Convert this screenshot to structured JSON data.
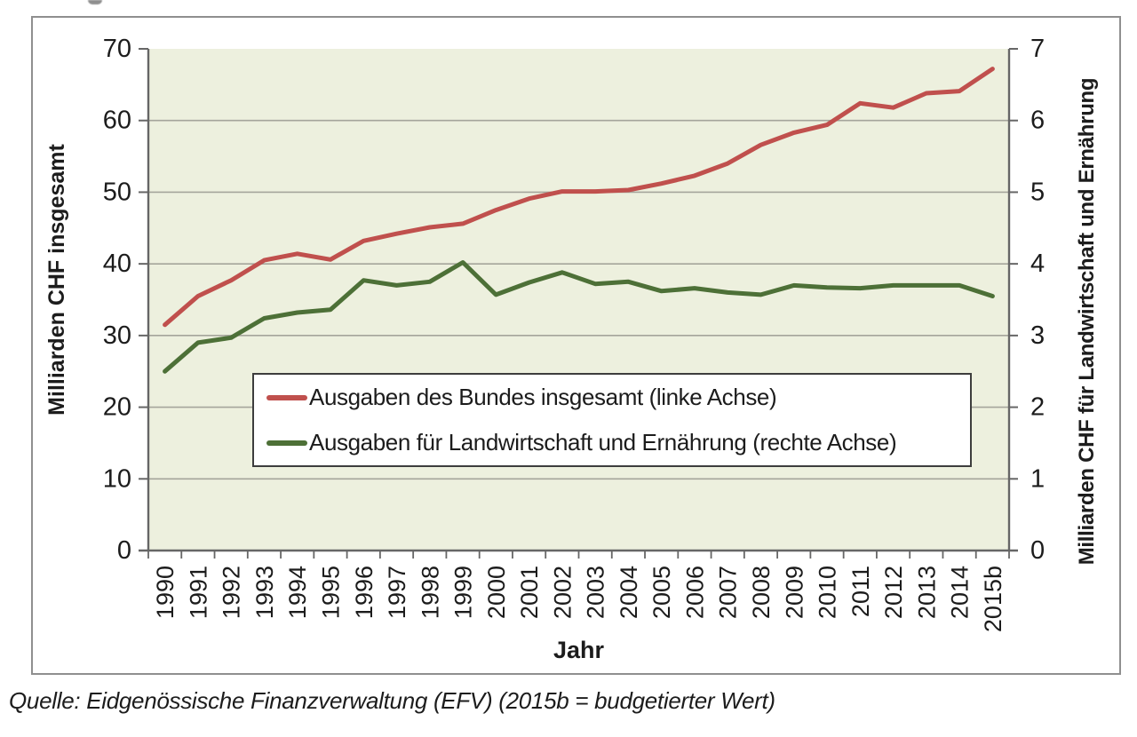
{
  "figure": {
    "source_note": "Quelle: Eidgenössische Finanzverwaltung (EFV) (2015b = budgetierter Wert)"
  },
  "style_colors": {
    "plot_bg": "#edf0de",
    "grid_color": "#a5a59b",
    "axis_color": "#666666",
    "frame_border": "#8f8f8f",
    "legend_border": "#3d3d3d",
    "text_color": "#1c1c1c",
    "series_red": "#c0504d",
    "series_green": "#4d7037"
  },
  "chart_data": {
    "type": "line",
    "title": "",
    "categories": [
      "1990",
      "1991",
      "1992",
      "1993",
      "1994",
      "1995",
      "1996",
      "1997",
      "1998",
      "1999",
      "2000",
      "2001",
      "2002",
      "2003",
      "2004",
      "2005",
      "2006",
      "2007",
      "2008",
      "2009",
      "2010",
      "2011",
      "2012",
      "2013",
      "2014",
      "2015b"
    ],
    "series": [
      {
        "name": "Ausgaben des Bundes insgesamt (linke Achse)",
        "axis": "left",
        "color": "#c0504d",
        "values": [
          31.5,
          35.5,
          37.7,
          40.5,
          41.4,
          40.6,
          43.2,
          44.2,
          45.1,
          45.6,
          47.5,
          49.1,
          50.1,
          50.1,
          50.3,
          51.2,
          52.3,
          54.0,
          56.6,
          58.3,
          59.4,
          62.4,
          61.8,
          63.8,
          64.1,
          67.2
        ]
      },
      {
        "name": "Ausgaben für Landwirtschaft und Ernährung (rechte Achse)",
        "axis": "right",
        "color": "#4d7037",
        "values": [
          2.5,
          2.9,
          2.97,
          3.24,
          3.32,
          3.36,
          3.77,
          3.7,
          3.75,
          4.02,
          3.57,
          3.74,
          3.88,
          3.72,
          3.75,
          3.62,
          3.66,
          3.6,
          3.57,
          3.7,
          3.67,
          3.66,
          3.7,
          3.7,
          3.7,
          3.55
        ]
      }
    ],
    "xlabel": "Jahr",
    "ylabel_left": "Milliarden CHF insgesamt",
    "ylabel_right": "Milliarden CHF für Landwirtschaft und Ernährung",
    "left_ylim": [
      0,
      70
    ],
    "right_ylim": [
      0,
      7
    ],
    "left_ticks": [
      0,
      10,
      20,
      30,
      40,
      50,
      60,
      70
    ],
    "right_ticks": [
      0,
      1,
      2,
      3,
      4,
      5,
      6,
      7
    ],
    "grid": true,
    "legend_position": "inside-middle-left"
  }
}
